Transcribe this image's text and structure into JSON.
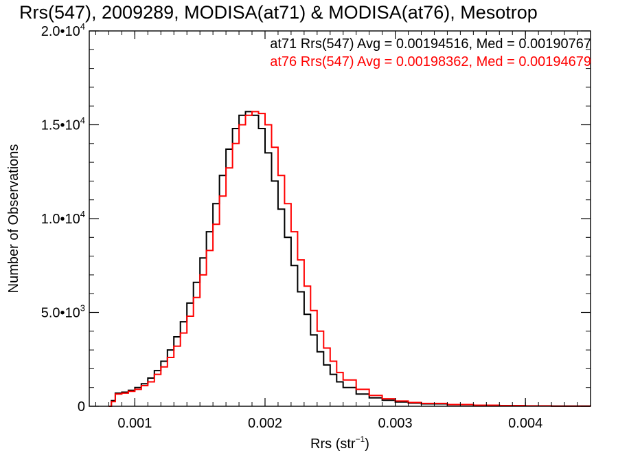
{
  "chart_data": {
    "type": "line",
    "title": "Rrs(547), 2009289, MODISA(at71) & MODISA(at76), Mesotrop",
    "xlabel": "Rrs (str",
    "xlabel_sup": "−1",
    "xlabel_end": ")",
    "ylabel": "Number of Observations",
    "xlim": [
      0.00065,
      0.0045
    ],
    "ylim": [
      0,
      20000
    ],
    "x_ticks": [
      {
        "value": 0.001,
        "label": "0.001"
      },
      {
        "value": 0.002,
        "label": "0.002"
      },
      {
        "value": 0.003,
        "label": "0.003"
      },
      {
        "value": 0.004,
        "label": "0.004"
      }
    ],
    "y_ticks": [
      {
        "value": 0,
        "label": "0",
        "exp": ""
      },
      {
        "value": 5000,
        "label": "5.0•10",
        "exp": "3"
      },
      {
        "value": 10000,
        "label": "1.0•10",
        "exp": "4"
      },
      {
        "value": 15000,
        "label": "1.5•10",
        "exp": "4"
      },
      {
        "value": 20000,
        "label": "2.0•10",
        "exp": "4"
      }
    ],
    "grid": false,
    "legend_position": "top-right",
    "series": [
      {
        "name": "at71",
        "color": "#000000",
        "label": "at71 Rrs(547) Avg = 0.00194516, Med = 0.00190767",
        "x": [
          0.0008,
          0.00082,
          0.00085,
          0.0009,
          0.00095,
          0.001,
          0.00105,
          0.0011,
          0.00115,
          0.0012,
          0.00125,
          0.0013,
          0.00135,
          0.0014,
          0.00145,
          0.0015,
          0.00155,
          0.0016,
          0.00165,
          0.0017,
          0.00175,
          0.0018,
          0.00185,
          0.0019,
          0.00195,
          0.002,
          0.00205,
          0.0021,
          0.00215,
          0.0022,
          0.00225,
          0.0023,
          0.00235,
          0.0024,
          0.00245,
          0.0025,
          0.00255,
          0.0026,
          0.0027,
          0.0028,
          0.0029,
          0.003,
          0.0031,
          0.0032,
          0.0034,
          0.0036,
          0.0038,
          0.004,
          0.0042,
          0.0045
        ],
        "y": [
          0,
          300,
          700,
          750,
          850,
          1000,
          1200,
          1500,
          1900,
          2400,
          3000,
          3700,
          4500,
          5500,
          6600,
          7900,
          9300,
          10800,
          12300,
          13700,
          14800,
          15500,
          15700,
          15500,
          14800,
          13500,
          12000,
          10500,
          9000,
          7500,
          6100,
          4900,
          3800,
          2900,
          2200,
          1700,
          1300,
          1000,
          650,
          450,
          320,
          230,
          170,
          130,
          80,
          50,
          30,
          20,
          10,
          0
        ]
      },
      {
        "name": "at76",
        "color": "#ff0000",
        "label": "at76 Rrs(547) Avg = 0.00198362, Med = 0.00194679",
        "x": [
          0.0008,
          0.00082,
          0.00085,
          0.0009,
          0.00095,
          0.001,
          0.00105,
          0.0011,
          0.00115,
          0.0012,
          0.00125,
          0.0013,
          0.00135,
          0.0014,
          0.00145,
          0.0015,
          0.00155,
          0.0016,
          0.00165,
          0.0017,
          0.00175,
          0.0018,
          0.00185,
          0.0019,
          0.00195,
          0.002,
          0.00205,
          0.0021,
          0.00215,
          0.0022,
          0.00225,
          0.0023,
          0.00235,
          0.0024,
          0.00245,
          0.0025,
          0.00255,
          0.0026,
          0.0027,
          0.0028,
          0.0029,
          0.003,
          0.0031,
          0.0032,
          0.0034,
          0.0036,
          0.0038,
          0.004,
          0.0042,
          0.0045
        ],
        "y": [
          0,
          250,
          650,
          700,
          800,
          900,
          1100,
          1300,
          1700,
          2100,
          2600,
          3200,
          3900,
          4800,
          5800,
          7000,
          8300,
          9700,
          11200,
          12700,
          14000,
          15000,
          15500,
          15700,
          15600,
          15000,
          13800,
          12300,
          10800,
          9300,
          7800,
          6400,
          5100,
          4000,
          3100,
          2400,
          1800,
          1400,
          900,
          580,
          400,
          280,
          200,
          150,
          90,
          55,
          35,
          22,
          12,
          0
        ]
      }
    ]
  }
}
